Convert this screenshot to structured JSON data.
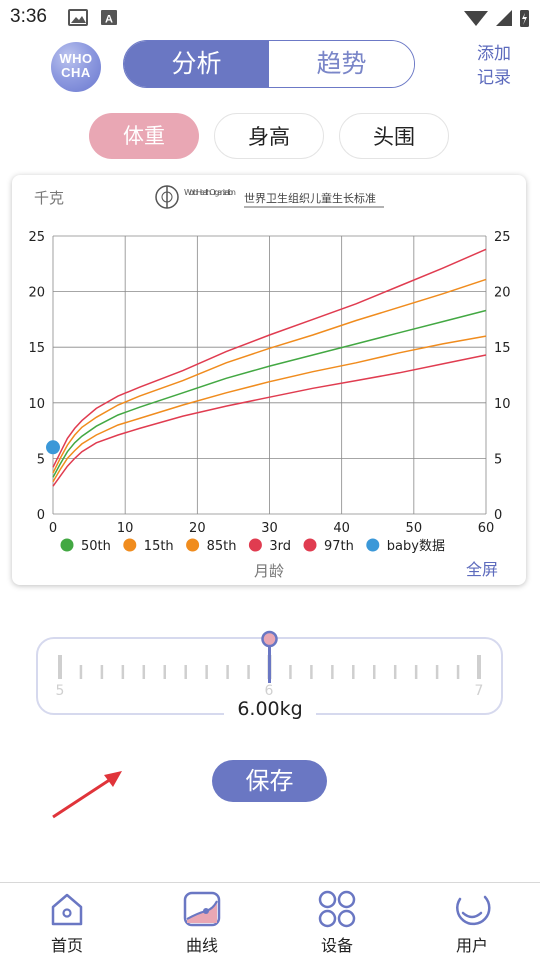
{
  "status_bar": {
    "time": "3:36"
  },
  "header": {
    "logo_line1": "WHO",
    "logo_line2": "CHA",
    "tabs": [
      {
        "label": "分析",
        "active": true
      },
      {
        "label": "趋势",
        "active": false
      }
    ],
    "add_record_line1": "添加",
    "add_record_line2": "记录"
  },
  "chips": [
    {
      "label": "体重",
      "active": true
    },
    {
      "label": "身高",
      "active": false
    },
    {
      "label": "头围",
      "active": false
    }
  ],
  "chart": {
    "y_unit": "千克",
    "who_caption": "World Health Organization",
    "who_standard": "世界卫生组织儿童生长标准",
    "x_label": "月龄",
    "fullscreen_label": "全屏"
  },
  "chart_data": {
    "type": "line",
    "xlabel": "月龄",
    "ylabel": "千克",
    "xlim": [
      0,
      60
    ],
    "ylim": [
      0,
      25
    ],
    "x_ticks": [
      0,
      10,
      20,
      30,
      40,
      50,
      60
    ],
    "y_ticks": [
      0,
      5,
      10,
      15,
      20,
      25
    ],
    "grid": true,
    "legend_position": "bottom",
    "x": [
      0,
      1,
      2,
      3,
      4,
      6,
      9,
      12,
      18,
      24,
      30,
      36,
      42,
      48,
      54,
      60
    ],
    "series": [
      {
        "name": "50th",
        "color": "#43a843",
        "values": [
          3.3,
          4.5,
          5.6,
          6.4,
          7.0,
          7.9,
          8.9,
          9.6,
          10.9,
          12.2,
          13.3,
          14.3,
          15.3,
          16.3,
          17.3,
          18.3
        ]
      },
      {
        "name": "15th",
        "color": "#f08c1e",
        "values": [
          2.9,
          4.0,
          5.0,
          5.7,
          6.3,
          7.1,
          8.0,
          8.6,
          9.8,
          10.9,
          11.9,
          12.8,
          13.6,
          14.5,
          15.3,
          16.0
        ]
      },
      {
        "name": "85th",
        "color": "#f08c1e",
        "values": [
          3.7,
          5.0,
          6.2,
          7.1,
          7.8,
          8.7,
          9.8,
          10.6,
          12.0,
          13.6,
          14.9,
          16.1,
          17.4,
          18.6,
          19.8,
          21.1
        ]
      },
      {
        "name": "3rd",
        "color": "#e03c50",
        "values": [
          2.5,
          3.4,
          4.3,
          5.0,
          5.6,
          6.4,
          7.1,
          7.7,
          8.8,
          9.7,
          10.5,
          11.3,
          12.0,
          12.7,
          13.5,
          14.3
        ]
      },
      {
        "name": "97th",
        "color": "#e03c50",
        "values": [
          4.2,
          5.5,
          6.8,
          7.7,
          8.4,
          9.5,
          10.6,
          11.4,
          12.9,
          14.6,
          16.1,
          17.5,
          18.9,
          20.5,
          22.1,
          23.8
        ]
      }
    ],
    "points": {
      "name": "baby数据",
      "color": "#3b98d8",
      "x": [
        0
      ],
      "y": [
        6.0
      ]
    }
  },
  "slider": {
    "tick_labels": [
      "5",
      "6",
      "7"
    ],
    "value": 6.0,
    "range": [
      5,
      7
    ],
    "value_label": "6.00kg"
  },
  "save_label": "保存",
  "bottom_nav": [
    {
      "label": "首页"
    },
    {
      "label": "曲线"
    },
    {
      "label": "设备"
    },
    {
      "label": "用户"
    }
  ]
}
